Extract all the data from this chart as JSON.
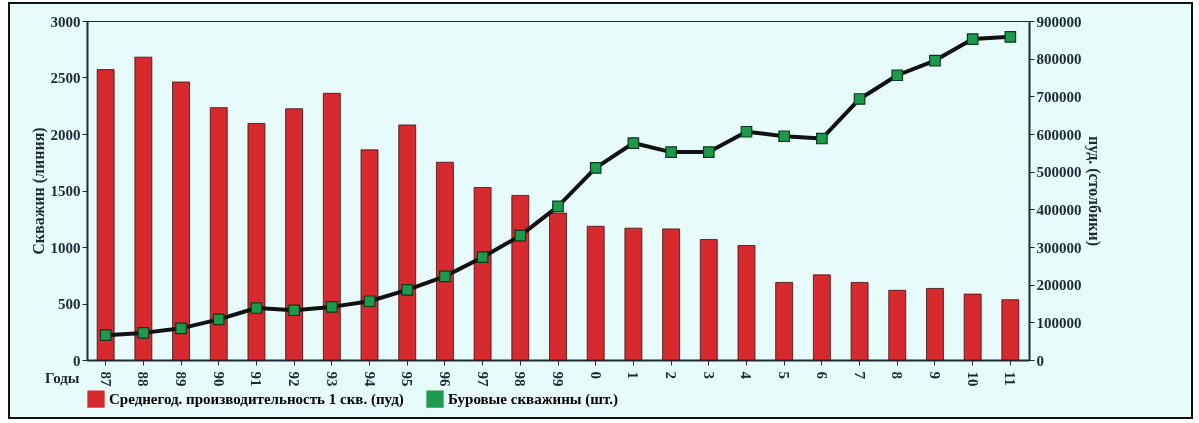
{
  "chart_data": {
    "type": "bar",
    "categories": [
      "87",
      "88",
      "89",
      "90",
      "91",
      "92",
      "93",
      "94",
      "95",
      "96",
      "97",
      "98",
      "99",
      "0",
      "1",
      "2",
      "3",
      "4",
      "5",
      "6",
      "7",
      "8",
      "9",
      "10",
      "11"
    ],
    "xlabel": "Годы",
    "ylabel": "Скважин (линия)",
    "y2label": "пуд. (столбики)",
    "ylim": [
      0,
      3000
    ],
    "yticks": [
      0,
      500,
      1000,
      1500,
      2000,
      2500,
      3000
    ],
    "y2lim": [
      0,
      900000
    ],
    "y2ticks": [
      0,
      100000,
      200000,
      300000,
      400000,
      500000,
      600000,
      700000,
      800000,
      900000
    ],
    "series": [
      {
        "name": "Среднегод. производительность 1 скв. (пуд)",
        "axis": "y2",
        "color": "#d62a2e",
        "values": [
          771000,
          804000,
          738000,
          670000,
          628000,
          667000,
          708000,
          558000,
          624000,
          525000,
          458000,
          437000,
          390000,
          355000,
          350000,
          348000,
          320000,
          304000,
          206000,
          226000,
          206000,
          185000,
          190000,
          175000,
          160000
        ]
      },
      {
        "name": "Буровые скважины (шт.)",
        "type": "line",
        "color": "#1e9a4e",
        "marker": "square",
        "values": [
          220,
          240,
          280,
          360,
          460,
          440,
          470,
          520,
          620,
          740,
          910,
          1100,
          1360,
          1700,
          1920,
          1840,
          1840,
          2020,
          1980,
          1960,
          2310,
          2520,
          2650,
          2840,
          2860
        ]
      }
    ],
    "legend": "bottom",
    "grid": false
  }
}
